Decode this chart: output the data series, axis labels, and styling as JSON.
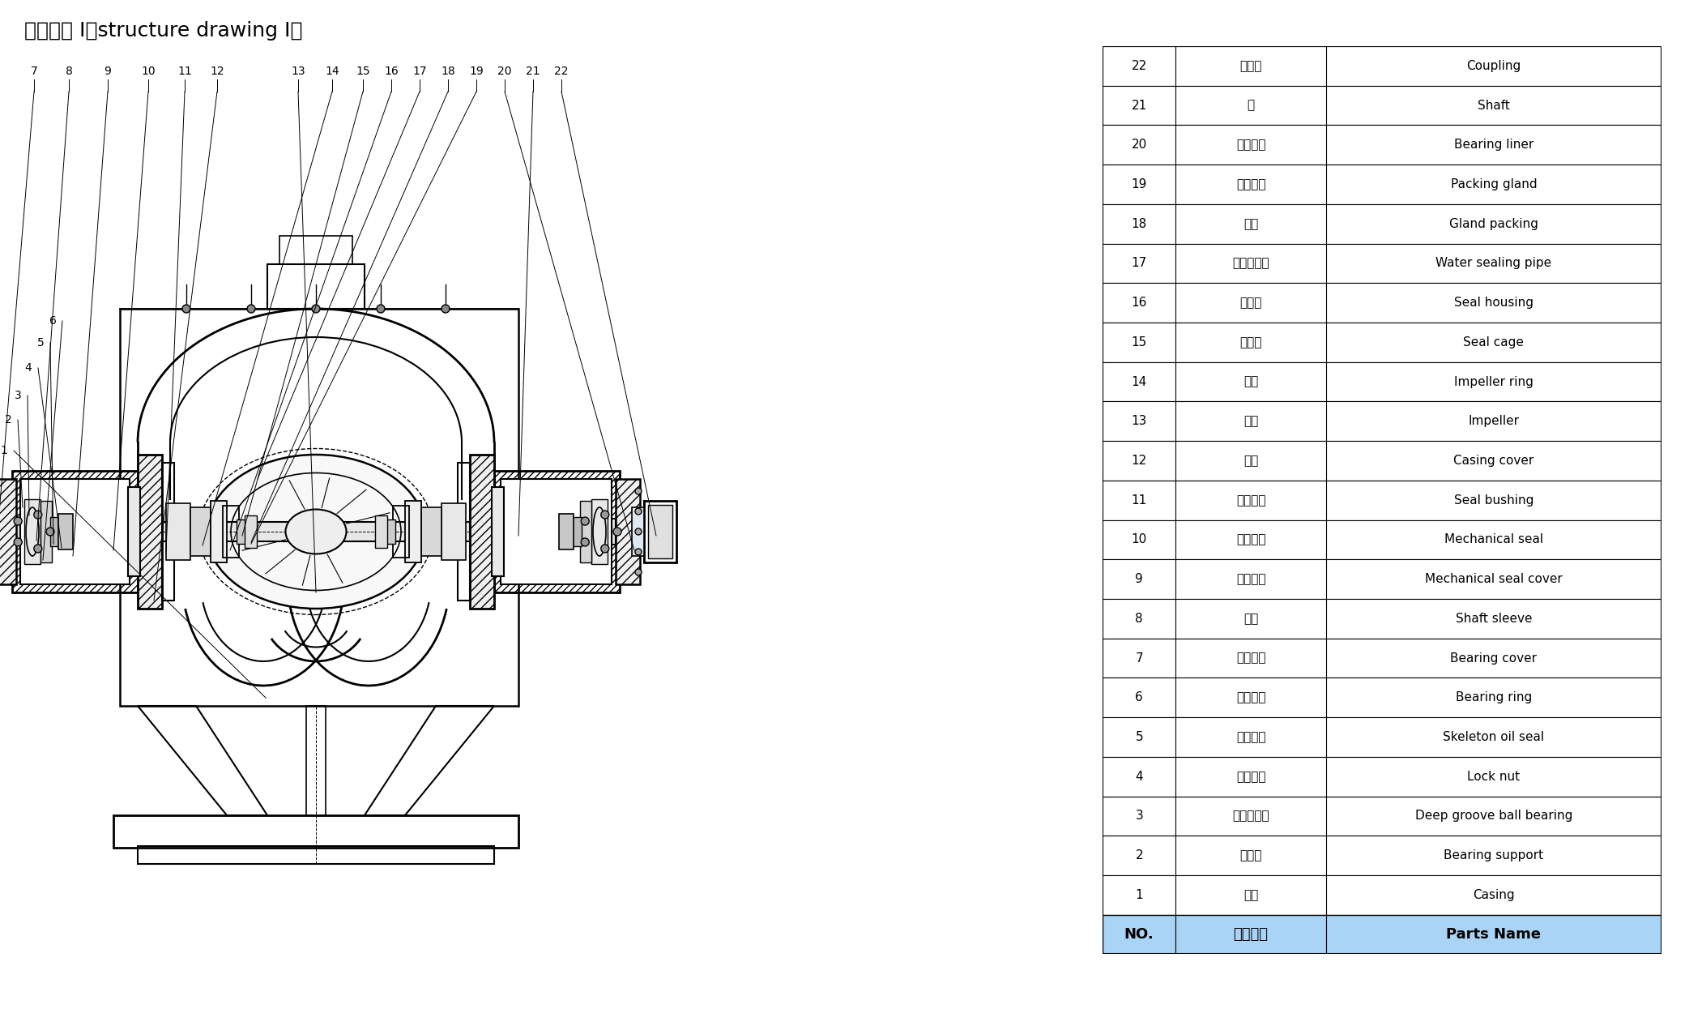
{
  "title": "结构形式 I（structure drawing I）",
  "title_fontsize": 18,
  "background_color": "#ffffff",
  "table_header": [
    "NO.",
    "零件名称",
    "Parts Name"
  ],
  "table_header_bg": "#aad4f5",
  "table_header_fontsize": 13,
  "table_row_fontsize": 11,
  "table_data": [
    [
      "22",
      "联轴器",
      "Coupling"
    ],
    [
      "21",
      "轴",
      "Shaft"
    ],
    [
      "20",
      "轴承衬圈",
      "Bearing liner"
    ],
    [
      "19",
      "填料压盖",
      "Packing gland"
    ],
    [
      "18",
      "填料",
      "Gland packing"
    ],
    [
      "17",
      "水封管部件",
      "Water sealing pipe"
    ],
    [
      "16",
      "密封体",
      "Seal housing"
    ],
    [
      "15",
      "填料环",
      "Seal cage"
    ],
    [
      "14",
      "口环",
      "Impeller ring"
    ],
    [
      "13",
      "叶轮",
      "Impeller"
    ],
    [
      "12",
      "泵盖",
      "Casing cover"
    ],
    [
      "11",
      "密封衬套",
      "Seal bushing"
    ],
    [
      "10",
      "机械密封",
      "Mechanical seal"
    ],
    [
      "9",
      "机封压盖",
      "Mechanical seal cover"
    ],
    [
      "8",
      "轴套",
      "Shaft sleeve"
    ],
    [
      "7",
      "轴承压盖",
      "Bearing cover"
    ],
    [
      "6",
      "轴承压环",
      "Bearing ring"
    ],
    [
      "5",
      "骨架油封",
      "Skeleton oil seal"
    ],
    [
      "4",
      "锁紧螺母",
      "Lock nut"
    ],
    [
      "3",
      "深沟球轴承",
      "Deep groove ball bearing"
    ],
    [
      "2",
      "轴承体",
      "Bearing support"
    ],
    [
      "1",
      "泵体",
      "Casing"
    ]
  ],
  "top_callouts": [
    [
      "7",
      42,
      1178
    ],
    [
      "8",
      85,
      1178
    ],
    [
      "9",
      133,
      1178
    ],
    [
      "10",
      183,
      1178
    ],
    [
      "11",
      228,
      1178
    ],
    [
      "12",
      268,
      1178
    ],
    [
      "13",
      368,
      1178
    ],
    [
      "14",
      410,
      1178
    ],
    [
      "15",
      448,
      1178
    ],
    [
      "16",
      483,
      1178
    ],
    [
      "17",
      518,
      1178
    ],
    [
      "18",
      553,
      1178
    ],
    [
      "19",
      588,
      1178
    ],
    [
      "20",
      623,
      1178
    ],
    [
      "21",
      658,
      1178
    ],
    [
      "22",
      693,
      1178
    ]
  ],
  "side_callouts": [
    [
      "6",
      65,
      870
    ],
    [
      "5",
      50,
      843
    ],
    [
      "4",
      35,
      812
    ],
    [
      "3",
      22,
      778
    ],
    [
      "2",
      10,
      748
    ],
    [
      "1",
      5,
      710
    ]
  ],
  "col_starts": [
    0.0,
    0.13,
    0.4
  ],
  "col_ends": [
    0.13,
    0.4,
    1.0
  ]
}
